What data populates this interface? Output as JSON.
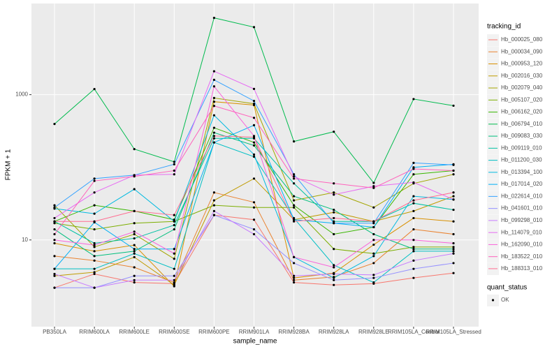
{
  "chart_data": {
    "type": "line",
    "x_label": "sample_name",
    "y_label": "FPKM + 1",
    "legend_title": "tracking_id",
    "shape_legend": {
      "title": "quant_status",
      "labels": [
        "OK"
      ]
    },
    "log_y": true,
    "grid": true,
    "ylim": [
      0.64,
      18000
    ],
    "yticks": [
      10,
      1000
    ],
    "categories": [
      "PB350LA",
      "RRIM600LA",
      "RRIM600LE",
      "RRIM600SE",
      "RRIM600PE",
      "RRIM901LA",
      "RRIM928BA",
      "RRIM928LA",
      "RRIM928LE",
      "RRIM105LA_Control",
      "RRIM105LA_Stressed"
    ],
    "series": [
      {
        "name": "Hb_000025_080",
        "color": "#F8766D",
        "values": [
          2.2,
          3.4,
          2.6,
          2.5,
          22,
          19,
          2.6,
          2.4,
          2.5,
          3.0,
          3.5
        ]
      },
      {
        "name": "Hb_000034_090",
        "color": "#EA8331",
        "values": [
          6,
          5.2,
          4.2,
          2.6,
          45,
          33,
          2.8,
          3.1,
          4.8,
          14,
          12
        ]
      },
      {
        "name": "Hb_000953_120",
        "color": "#D89000",
        "values": [
          9,
          7,
          8.5,
          2.3,
          800,
          720,
          3.0,
          3.5,
          8.6,
          20,
          18
        ]
      },
      {
        "name": "Hb_002016_030",
        "color": "#C09B00",
        "values": [
          3.2,
          3.6,
          5.8,
          2.4,
          35,
          70,
          19,
          24,
          18,
          25,
          40
        ]
      },
      {
        "name": "Hb_002079_040",
        "color": "#A3A500",
        "values": [
          30,
          8,
          12,
          5.5,
          900,
          750,
          35,
          45,
          28,
          60,
          80
        ]
      },
      {
        "name": "Hb_005107_020",
        "color": "#7CAE00",
        "values": [
          17,
          14,
          17,
          18,
          30,
          28,
          28,
          7.5,
          6.5,
          8,
          8
        ]
      },
      {
        "name": "Hb_006162_020",
        "color": "#39B600",
        "values": [
          18,
          30,
          25,
          19,
          350,
          220,
          30,
          12,
          15,
          80,
          90
        ]
      },
      {
        "name": "Hb_006794_010",
        "color": "#00BB4E",
        "values": [
          395,
          1195,
          178,
          119,
          11400,
          8500,
          227,
          309,
          61,
          870,
          705
        ]
      },
      {
        "name": "Hb_009083_030",
        "color": "#00BF7D",
        "values": [
          14,
          6,
          7,
          14,
          300,
          200,
          40,
          26,
          12,
          7.5,
          7.5
        ]
      },
      {
        "name": "Hb_009119_010",
        "color": "#00C1A3",
        "values": [
          18,
          9,
          10.5,
          16,
          250,
          250,
          60,
          18,
          18,
          32,
          26
        ]
      },
      {
        "name": "Hb_011200_030",
        "color": "#00BFC4",
        "values": [
          4,
          4,
          6.5,
          4,
          220,
          140,
          20,
          4.5,
          2.6,
          7,
          7
        ]
      },
      {
        "name": "Hb_013394_100",
        "color": "#00BAE0",
        "values": [
          27,
          23,
          50,
          18,
          520,
          150,
          5.8,
          3.0,
          6,
          40,
          36
        ]
      },
      {
        "name": "Hb_017014_020",
        "color": "#00B0F6",
        "values": [
          4,
          17.5,
          7.5,
          7.5,
          220,
          380,
          19,
          17,
          15,
          100,
          110
        ]
      },
      {
        "name": "Hb_022614_010",
        "color": "#35A2FF",
        "values": [
          28,
          70,
          78,
          110,
          1600,
          820,
          80,
          17,
          17,
          115,
          108
        ]
      },
      {
        "name": "Hb_041601_010",
        "color": "#9590FF",
        "values": [
          2.2,
          2.2,
          3.2,
          3.2,
          22,
          14,
          4.8,
          2.8,
          3.0,
          4.0,
          4.8
        ]
      },
      {
        "name": "Hb_099298_010",
        "color": "#C77CFF",
        "values": [
          3.4,
          2.2,
          2.8,
          2.8,
          25,
          12,
          3.2,
          3.4,
          3.3,
          5.2,
          6.5
        ]
      },
      {
        "name": "Hb_114079_010",
        "color": "#E76BF3",
        "values": [
          20,
          45,
          78,
          80,
          2100,
          1200,
          75,
          42,
          55,
          62,
          36
        ]
      },
      {
        "name": "Hb_162090_010",
        "color": "#FA62DB",
        "values": [
          10,
          8.5,
          13,
          6.5,
          1300,
          270,
          5.8,
          4.2,
          10,
          10,
          9
        ]
      },
      {
        "name": "Hb_183522_010",
        "color": "#FF62BC",
        "values": [
          12,
          65,
          75,
          90,
          700,
          480,
          70,
          60,
          52,
          95,
          90
        ]
      },
      {
        "name": "Hb_188313_010",
        "color": "#FF6C91",
        "values": [
          18,
          18,
          25,
          22,
          270,
          260,
          18,
          20,
          18,
          35,
          45
        ]
      }
    ]
  }
}
